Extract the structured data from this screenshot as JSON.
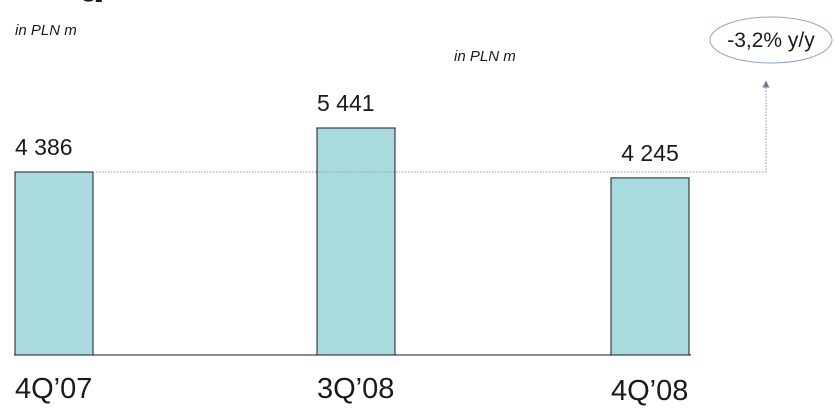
{
  "unit_label_primary": "in PLN m",
  "unit_label_secondary": "in PLN m",
  "change_badge": "-3,2% y/y",
  "colors": {
    "bar_fill": "#a9dade",
    "bar_stroke": "#1a1a1a",
    "connector": "#9a9aa6",
    "arrow": "#7a7a98",
    "badge_stroke": "#8fa6c8"
  },
  "chart_data": {
    "type": "bar",
    "categories": [
      "4Q’07",
      "3Q’08",
      "4Q’08"
    ],
    "values": [
      4386,
      5441,
      4245
    ],
    "value_labels": [
      "4 386",
      "5 441",
      "4 245"
    ],
    "ylim": [
      0,
      7000
    ]
  }
}
